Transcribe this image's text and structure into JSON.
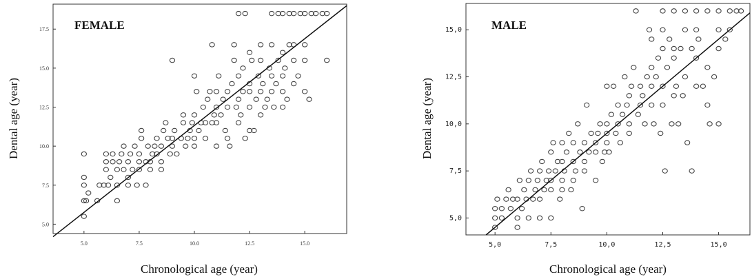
{
  "chart_data": [
    {
      "type": "scatter",
      "title": "FEMALE",
      "xlabel": "Chronological age (year)",
      "ylabel": "Dental age (year)",
      "xlim": [
        3.6,
        16.9
      ],
      "ylim": [
        4.4,
        19.1
      ],
      "x_ticks": [
        5.0,
        7.5,
        10.0,
        12.5,
        15.0
      ],
      "x_tick_labels": [
        "5.0",
        "7.5",
        "10.0",
        "12.5",
        "15.0"
      ],
      "y_ticks": [
        5.0,
        7.5,
        10.0,
        12.5,
        15.0,
        17.5
      ],
      "y_tick_labels": [
        "5.0",
        "7.5",
        "10.0",
        "12.5",
        "15.0",
        "17.5"
      ],
      "fit_line": [
        [
          3.6,
          4.2
        ],
        [
          16.9,
          19.0
        ]
      ],
      "points": [
        [
          5.0,
          5.5
        ],
        [
          5.0,
          6.5
        ],
        [
          5.0,
          7.5
        ],
        [
          5.0,
          8.0
        ],
        [
          5.0,
          9.5
        ],
        [
          5.1,
          6.5
        ],
        [
          5.2,
          7.0
        ],
        [
          5.6,
          6.5
        ],
        [
          5.7,
          7.5
        ],
        [
          5.9,
          7.5
        ],
        [
          6.0,
          8.5
        ],
        [
          6.0,
          9.0
        ],
        [
          6.0,
          9.5
        ],
        [
          6.1,
          7.5
        ],
        [
          6.2,
          8.0
        ],
        [
          6.3,
          9.0
        ],
        [
          6.3,
          9.5
        ],
        [
          6.5,
          6.5
        ],
        [
          6.5,
          7.5
        ],
        [
          6.5,
          8.5
        ],
        [
          6.6,
          9.0
        ],
        [
          6.7,
          9.5
        ],
        [
          6.8,
          10.0
        ],
        [
          6.8,
          8.5
        ],
        [
          7.0,
          7.5
        ],
        [
          7.0,
          8.0
        ],
        [
          7.0,
          9.0
        ],
        [
          7.1,
          9.5
        ],
        [
          7.2,
          8.5
        ],
        [
          7.3,
          10.0
        ],
        [
          7.4,
          7.5
        ],
        [
          7.5,
          8.5
        ],
        [
          7.5,
          9.0
        ],
        [
          7.5,
          9.5
        ],
        [
          7.6,
          10.5
        ],
        [
          7.6,
          11.0
        ],
        [
          7.8,
          7.5
        ],
        [
          7.8,
          9.0
        ],
        [
          7.9,
          10.0
        ],
        [
          8.0,
          8.5
        ],
        [
          8.0,
          9.0
        ],
        [
          8.1,
          9.5
        ],
        [
          8.2,
          10.0
        ],
        [
          8.3,
          10.5
        ],
        [
          8.3,
          9.5
        ],
        [
          8.5,
          8.5
        ],
        [
          8.5,
          9.0
        ],
        [
          8.5,
          10.0
        ],
        [
          8.6,
          11.0
        ],
        [
          8.7,
          11.5
        ],
        [
          8.8,
          10.5
        ],
        [
          8.9,
          9.5
        ],
        [
          9.0,
          10.0
        ],
        [
          9.0,
          10.5
        ],
        [
          9.0,
          15.5
        ],
        [
          9.1,
          11.0
        ],
        [
          9.2,
          9.5
        ],
        [
          9.4,
          10.5
        ],
        [
          9.5,
          11.5
        ],
        [
          9.5,
          12.0
        ],
        [
          9.6,
          10.0
        ],
        [
          9.7,
          10.5
        ],
        [
          9.8,
          11.0
        ],
        [
          9.9,
          11.5
        ],
        [
          10.0,
          10.0
        ],
        [
          10.0,
          10.5
        ],
        [
          10.0,
          12.0
        ],
        [
          10.0,
          14.5
        ],
        [
          10.1,
          13.5
        ],
        [
          10.2,
          11.0
        ],
        [
          10.3,
          11.5
        ],
        [
          10.4,
          12.5
        ],
        [
          10.5,
          10.5
        ],
        [
          10.5,
          11.5
        ],
        [
          10.6,
          13.0
        ],
        [
          10.7,
          13.5
        ],
        [
          10.8,
          11.5
        ],
        [
          10.8,
          16.5
        ],
        [
          10.9,
          12.0
        ],
        [
          11.0,
          10.0
        ],
        [
          11.0,
          11.5
        ],
        [
          11.0,
          12.5
        ],
        [
          11.0,
          13.5
        ],
        [
          11.1,
          14.5
        ],
        [
          11.2,
          12.0
        ],
        [
          11.3,
          13.0
        ],
        [
          11.4,
          11.0
        ],
        [
          11.5,
          10.5
        ],
        [
          11.5,
          12.5
        ],
        [
          11.5,
          13.5
        ],
        [
          11.6,
          10.0
        ],
        [
          11.7,
          14.0
        ],
        [
          11.8,
          15.5
        ],
        [
          11.8,
          16.5
        ],
        [
          11.9,
          12.5
        ],
        [
          12.0,
          11.5
        ],
        [
          12.0,
          13.0
        ],
        [
          12.0,
          14.5
        ],
        [
          12.0,
          18.5
        ],
        [
          12.1,
          12.0
        ],
        [
          12.2,
          13.5
        ],
        [
          12.2,
          15.0
        ],
        [
          12.3,
          10.5
        ],
        [
          12.3,
          18.5
        ],
        [
          12.5,
          11.0
        ],
        [
          12.5,
          12.5
        ],
        [
          12.5,
          13.5
        ],
        [
          12.5,
          14.0
        ],
        [
          12.5,
          16.0
        ],
        [
          12.6,
          15.5
        ],
        [
          12.7,
          11.0
        ],
        [
          12.8,
          13.0
        ],
        [
          12.9,
          14.5
        ],
        [
          13.0,
          12.0
        ],
        [
          13.0,
          13.5
        ],
        [
          13.0,
          15.5
        ],
        [
          13.0,
          16.5
        ],
        [
          13.1,
          14.0
        ],
        [
          13.2,
          12.5
        ],
        [
          13.3,
          13.0
        ],
        [
          13.4,
          15.0
        ],
        [
          13.5,
          13.5
        ],
        [
          13.5,
          14.5
        ],
        [
          13.5,
          16.5
        ],
        [
          13.5,
          18.5
        ],
        [
          13.6,
          12.5
        ],
        [
          13.7,
          14.0
        ],
        [
          13.8,
          15.5
        ],
        [
          13.8,
          18.5
        ],
        [
          14.0,
          12.5
        ],
        [
          14.0,
          13.5
        ],
        [
          14.0,
          14.5
        ],
        [
          14.0,
          16.0
        ],
        [
          14.0,
          18.5
        ],
        [
          14.1,
          15.0
        ],
        [
          14.2,
          13.0
        ],
        [
          14.3,
          16.5
        ],
        [
          14.3,
          18.5
        ],
        [
          14.5,
          14.0
        ],
        [
          14.5,
          15.5
        ],
        [
          14.5,
          16.5
        ],
        [
          14.5,
          18.5
        ],
        [
          14.7,
          14.5
        ],
        [
          14.8,
          18.5
        ],
        [
          15.0,
          13.5
        ],
        [
          15.0,
          15.5
        ],
        [
          15.0,
          16.5
        ],
        [
          15.0,
          18.5
        ],
        [
          15.2,
          13.0
        ],
        [
          15.3,
          18.5
        ],
        [
          15.5,
          18.5
        ],
        [
          15.8,
          18.5
        ],
        [
          16.0,
          15.5
        ],
        [
          16.0,
          18.5
        ]
      ]
    },
    {
      "type": "scatter",
      "title": "MALE",
      "xlabel": "Chronological age (year)",
      "ylabel": "Dental age (year)",
      "xlim": [
        3.7,
        16.4
      ],
      "ylim": [
        4.1,
        16.4
      ],
      "x_ticks": [
        5.0,
        7.5,
        10.0,
        12.5,
        15.0
      ],
      "x_tick_labels": [
        "5,0",
        "7,5",
        "10,0",
        "12,5",
        "15,0"
      ],
      "y_ticks": [
        5.0,
        7.5,
        10.0,
        12.5,
        15.0
      ],
      "y_tick_labels": [
        "5,0",
        "7,5",
        "10,0",
        "12,5",
        "15,0"
      ],
      "fit_line": [
        [
          4.6,
          4.1
        ],
        [
          16.4,
          15.9
        ]
      ],
      "points": [
        [
          5.0,
          4.5
        ],
        [
          5.0,
          5.0
        ],
        [
          5.0,
          5.5
        ],
        [
          5.1,
          6.0
        ],
        [
          5.3,
          5.0
        ],
        [
          5.3,
          5.5
        ],
        [
          5.5,
          6.0
        ],
        [
          5.6,
          6.5
        ],
        [
          5.7,
          5.5
        ],
        [
          5.8,
          6.0
        ],
        [
          6.0,
          4.5
        ],
        [
          6.0,
          5.0
        ],
        [
          6.0,
          6.0
        ],
        [
          6.1,
          7.0
        ],
        [
          6.2,
          5.5
        ],
        [
          6.3,
          6.5
        ],
        [
          6.4,
          6.0
        ],
        [
          6.5,
          5.0
        ],
        [
          6.5,
          7.0
        ],
        [
          6.6,
          7.5
        ],
        [
          6.7,
          6.0
        ],
        [
          6.8,
          6.5
        ],
        [
          6.9,
          7.0
        ],
        [
          7.0,
          5.0
        ],
        [
          7.0,
          6.0
        ],
        [
          7.0,
          7.5
        ],
        [
          7.1,
          8.0
        ],
        [
          7.2,
          6.5
        ],
        [
          7.3,
          7.0
        ],
        [
          7.4,
          7.5
        ],
        [
          7.5,
          5.0
        ],
        [
          7.5,
          6.5
        ],
        [
          7.5,
          7.0
        ],
        [
          7.5,
          8.5
        ],
        [
          7.6,
          9.0
        ],
        [
          7.7,
          7.5
        ],
        [
          7.8,
          8.0
        ],
        [
          7.9,
          6.0
        ],
        [
          8.0,
          6.5
        ],
        [
          8.0,
          7.0
        ],
        [
          8.0,
          8.0
        ],
        [
          8.0,
          9.0
        ],
        [
          8.1,
          7.5
        ],
        [
          8.2,
          8.5
        ],
        [
          8.3,
          9.5
        ],
        [
          8.4,
          6.5
        ],
        [
          8.5,
          7.0
        ],
        [
          8.5,
          8.0
        ],
        [
          8.5,
          9.0
        ],
        [
          8.6,
          7.5
        ],
        [
          8.7,
          10.0
        ],
        [
          8.8,
          8.5
        ],
        [
          8.9,
          5.5
        ],
        [
          9.0,
          7.5
        ],
        [
          9.0,
          8.0
        ],
        [
          9.0,
          9.0
        ],
        [
          9.1,
          11.0
        ],
        [
          9.2,
          8.5
        ],
        [
          9.3,
          9.5
        ],
        [
          9.5,
          7.0
        ],
        [
          9.5,
          8.5
        ],
        [
          9.5,
          9.0
        ],
        [
          9.6,
          9.5
        ],
        [
          9.7,
          10.0
        ],
        [
          9.8,
          8.0
        ],
        [
          9.9,
          8.5
        ],
        [
          10.0,
          9.0
        ],
        [
          10.0,
          9.5
        ],
        [
          10.0,
          10.0
        ],
        [
          10.0,
          12.0
        ],
        [
          10.1,
          8.5
        ],
        [
          10.2,
          10.5
        ],
        [
          10.3,
          12.0
        ],
        [
          10.4,
          9.5
        ],
        [
          10.5,
          10.0
        ],
        [
          10.5,
          11.0
        ],
        [
          10.6,
          9.0
        ],
        [
          10.7,
          10.5
        ],
        [
          10.8,
          12.5
        ],
        [
          10.9,
          11.0
        ],
        [
          11.0,
          9.5
        ],
        [
          11.0,
          10.0
        ],
        [
          11.0,
          11.5
        ],
        [
          11.1,
          12.0
        ],
        [
          11.2,
          13.0
        ],
        [
          11.3,
          16.0
        ],
        [
          11.4,
          10.5
        ],
        [
          11.5,
          11.0
        ],
        [
          11.5,
          12.0
        ],
        [
          11.6,
          11.5
        ],
        [
          11.7,
          10.0
        ],
        [
          11.8,
          12.5
        ],
        [
          11.9,
          15.0
        ],
        [
          12.0,
          11.0
        ],
        [
          12.0,
          12.0
        ],
        [
          12.0,
          13.0
        ],
        [
          12.0,
          14.5
        ],
        [
          12.1,
          10.0
        ],
        [
          12.2,
          12.5
        ],
        [
          12.3,
          13.5
        ],
        [
          12.4,
          9.5
        ],
        [
          12.5,
          11.0
        ],
        [
          12.5,
          12.0
        ],
        [
          12.5,
          14.0
        ],
        [
          12.5,
          15.0
        ],
        [
          12.5,
          16.0
        ],
        [
          12.6,
          7.5
        ],
        [
          12.7,
          13.0
        ],
        [
          12.8,
          14.5
        ],
        [
          12.9,
          10.0
        ],
        [
          13.0,
          11.5
        ],
        [
          13.0,
          13.5
        ],
        [
          13.0,
          14.0
        ],
        [
          13.0,
          16.0
        ],
        [
          13.1,
          12.0
        ],
        [
          13.2,
          10.0
        ],
        [
          13.3,
          14.0
        ],
        [
          13.4,
          11.5
        ],
        [
          13.5,
          12.5
        ],
        [
          13.5,
          15.0
        ],
        [
          13.5,
          16.0
        ],
        [
          13.6,
          9.0
        ],
        [
          13.8,
          7.5
        ],
        [
          13.8,
          14.0
        ],
        [
          14.0,
          12.0
        ],
        [
          14.0,
          13.5
        ],
        [
          14.0,
          15.0
        ],
        [
          14.0,
          16.0
        ],
        [
          14.1,
          14.5
        ],
        [
          14.3,
          12.0
        ],
        [
          14.5,
          11.0
        ],
        [
          14.5,
          13.0
        ],
        [
          14.5,
          16.0
        ],
        [
          14.6,
          10.0
        ],
        [
          14.8,
          12.5
        ],
        [
          15.0,
          10.0
        ],
        [
          15.0,
          14.0
        ],
        [
          15.0,
          15.0
        ],
        [
          15.0,
          16.0
        ],
        [
          15.3,
          14.5
        ],
        [
          15.5,
          15.0
        ],
        [
          15.5,
          16.0
        ],
        [
          15.8,
          16.0
        ],
        [
          16.0,
          16.0
        ]
      ]
    }
  ]
}
